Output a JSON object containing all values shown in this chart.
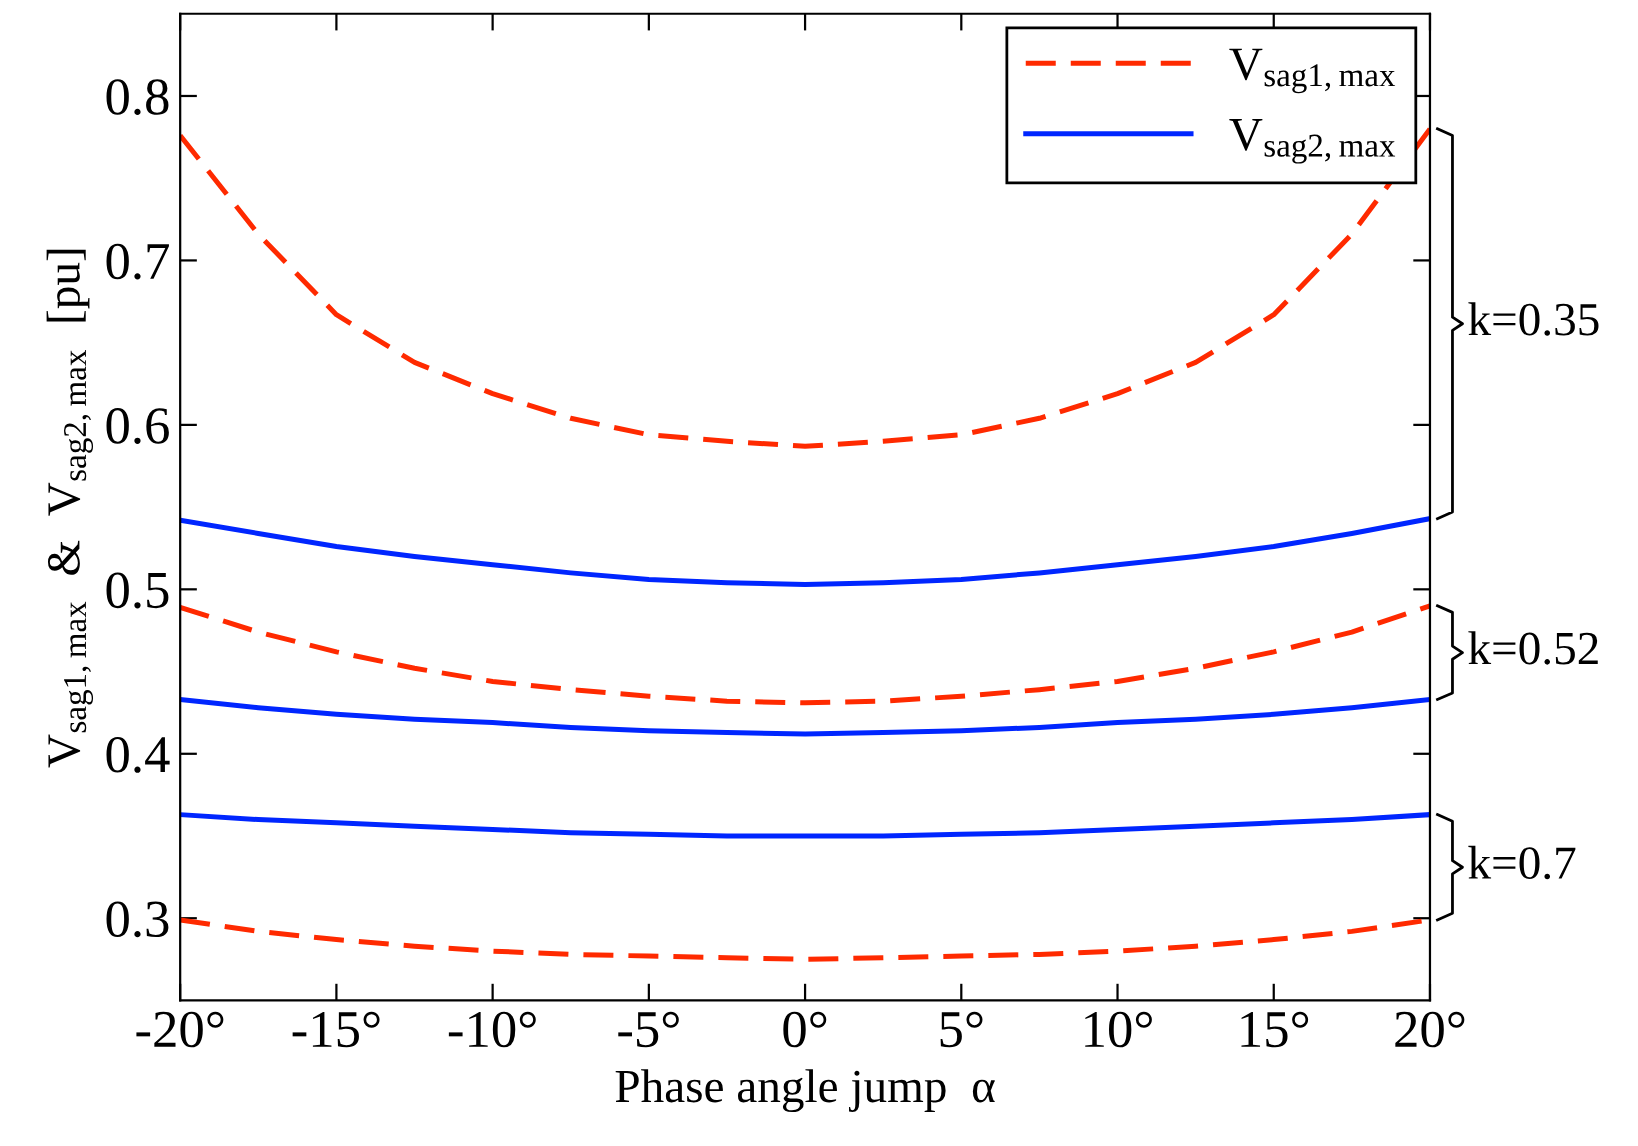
{
  "chart_data": {
    "type": "line",
    "xlabel": "Phase angle jump  α",
    "ylabel": "V$_{sag1,max}$  &  V$_{sag2,max}$  [pu]",
    "x": [
      -20,
      -17.5,
      -15,
      -12.5,
      -10,
      -7.5,
      -5,
      -2.5,
      0,
      2.5,
      5,
      7.5,
      10,
      12.5,
      15,
      17.5,
      20
    ],
    "series": [
      {
        "name": "V$_{sag1,max}$",
        "color": "#ff2a00",
        "line_style": "dashed",
        "values": [
          0.776,
          0.716,
          0.667,
          0.638,
          0.619,
          0.604,
          0.594,
          0.59,
          0.587,
          0.59,
          0.594,
          0.604,
          0.619,
          0.638,
          0.667,
          0.716,
          0.78
        ]
      },
      {
        "name": "V$_{sag2,max}$",
        "color": "#0026ff",
        "line_style": "solid",
        "values": [
          0.542,
          0.534,
          0.526,
          0.52,
          0.515,
          0.51,
          0.506,
          0.504,
          0.503,
          0.504,
          0.506,
          0.51,
          0.515,
          0.52,
          0.526,
          0.534,
          0.543
        ]
      },
      {
        "color": "#ff2a00",
        "line_style": "dashed",
        "values": [
          0.489,
          0.474,
          0.462,
          0.452,
          0.444,
          0.439,
          0.435,
          0.432,
          0.431,
          0.432,
          0.435,
          0.439,
          0.444,
          0.452,
          0.462,
          0.474,
          0.49
        ]
      },
      {
        "color": "#0026ff",
        "line_style": "solid",
        "values": [
          0.433,
          0.428,
          0.424,
          0.421,
          0.419,
          0.416,
          0.414,
          0.413,
          0.412,
          0.413,
          0.414,
          0.416,
          0.419,
          0.421,
          0.424,
          0.428,
          0.433
        ]
      },
      {
        "color": "#0026ff",
        "line_style": "solid",
        "values": [
          0.363,
          0.36,
          0.358,
          0.356,
          0.354,
          0.352,
          0.351,
          0.35,
          0.35,
          0.35,
          0.351,
          0.352,
          0.354,
          0.356,
          0.358,
          0.36,
          0.363
        ]
      },
      {
        "color": "#ff2a00",
        "line_style": "dashed",
        "values": [
          0.299,
          0.292,
          0.287,
          0.283,
          0.28,
          0.278,
          0.277,
          0.276,
          0.275,
          0.276,
          0.277,
          0.278,
          0.28,
          0.283,
          0.287,
          0.292,
          0.299
        ]
      }
    ],
    "annotations": [
      "k=0.35",
      "k=0.52",
      "k=0.7"
    ],
    "xlim": [
      -20,
      20
    ],
    "ylim": [
      0.25,
      0.85
    ],
    "xticks": [
      {
        "value": -20,
        "label": "-20°"
      },
      {
        "value": -15,
        "label": "-15°"
      },
      {
        "value": -10,
        "label": "-10°"
      },
      {
        "value": -5,
        "label": "-5°"
      },
      {
        "value": 0,
        "label": "0°"
      },
      {
        "value": 5,
        "label": "5°"
      },
      {
        "value": 10,
        "label": "10°"
      },
      {
        "value": 15,
        "label": "15°"
      },
      {
        "value": 20,
        "label": "20°"
      }
    ],
    "yticks": [
      0.3,
      0.4,
      0.5,
      0.6,
      0.7,
      0.8
    ],
    "grid": false,
    "legend": "top right",
    "marker": "none"
  }
}
